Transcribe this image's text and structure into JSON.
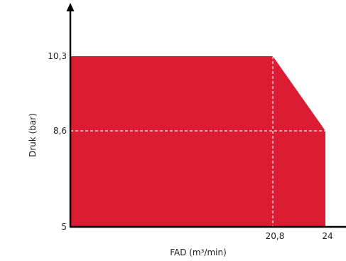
{
  "chart_data": {
    "type": "area",
    "title": "",
    "xlabel": "FAD (m³/min)",
    "ylabel": "Druk (bar)",
    "x_ticks": [
      {
        "value": 20.8,
        "label": "20,8"
      },
      {
        "value": 24,
        "label": "24"
      }
    ],
    "y_ticks": [
      {
        "value": 5,
        "label": "5"
      },
      {
        "value": 8.6,
        "label": "8,6"
      },
      {
        "value": 10.3,
        "label": "10,3"
      }
    ],
    "series": [
      {
        "points": [
          {
            "x": 0,
            "y": 10.3
          },
          {
            "x": 20.8,
            "y": 10.3
          },
          {
            "x": 24,
            "y": 8.6
          },
          {
            "x": 24,
            "y": 5
          },
          {
            "x": 0,
            "y": 5
          }
        ]
      }
    ],
    "reference_lines": [
      {
        "axis": "x",
        "value": 20.8
      },
      {
        "axis": "y",
        "value": 8.6
      }
    ],
    "fill_color": "#dc1c32",
    "axis_color": "#000000",
    "grid": false
  }
}
